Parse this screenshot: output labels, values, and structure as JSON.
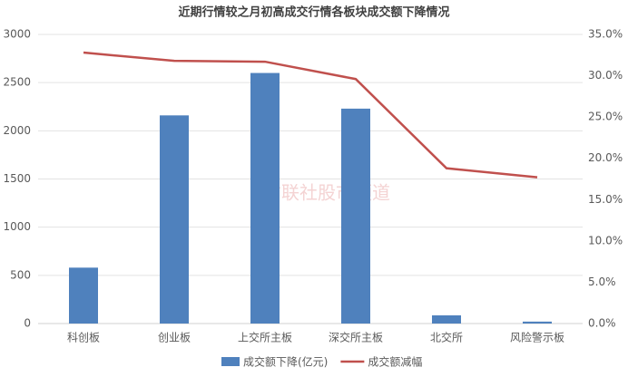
{
  "chart_data": {
    "type": "bar",
    "title": "近期行情较之月初高成交行情各板块成交额下降情况",
    "watermark": "财联社股市频道",
    "categories": [
      "科创板",
      "创业板",
      "上交所主板",
      "深交所主板",
      "北交所",
      "风险警示板"
    ],
    "series": [
      {
        "name": "成交额下降(亿元)",
        "type": "bar",
        "color": "#4f81bd",
        "values": [
          580,
          2160,
          2600,
          2230,
          85,
          20
        ]
      },
      {
        "name": "成交额减幅",
        "type": "line",
        "axis": "y2",
        "color": "#c0504d",
        "values": [
          32.8,
          31.8,
          31.7,
          29.6,
          18.8,
          17.7
        ]
      }
    ],
    "ylim": [
      0,
      3000
    ],
    "yticks": [
      0,
      500,
      1000,
      1500,
      2000,
      2500,
      3000
    ],
    "y2lim": [
      0,
      35
    ],
    "y2ticks": [
      {
        "value": 0,
        "label": "0.0%"
      },
      {
        "value": 5,
        "label": "5.0%"
      },
      {
        "value": 10,
        "label": "10.0%"
      },
      {
        "value": 15,
        "label": "15.0%"
      },
      {
        "value": 20,
        "label": "20.0%"
      },
      {
        "value": 25,
        "label": "25.0%"
      },
      {
        "value": 30,
        "label": "30.0%"
      },
      {
        "value": 35,
        "label": "35.0%"
      }
    ],
    "grid": true
  }
}
